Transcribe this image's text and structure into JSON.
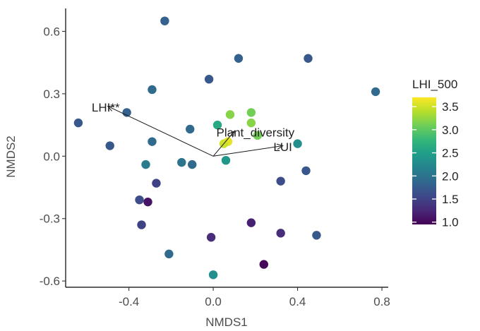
{
  "chart_data": {
    "type": "scatter",
    "title": "",
    "xlabel": "NMDS1",
    "ylabel": "NMDS2",
    "xlim": [
      -0.7,
      0.83
    ],
    "ylim": [
      -0.63,
      0.71
    ],
    "x_ticks": [
      -0.4,
      0.0,
      0.4,
      0.8
    ],
    "x_tick_labels": [
      "-0.4",
      "0.0",
      "0.4",
      "0.8"
    ],
    "y_ticks": [
      -0.6,
      -0.3,
      0.0,
      0.3,
      0.6
    ],
    "y_tick_labels": [
      "-0.6",
      "-0.3",
      "0.0",
      "0.3",
      "0.6"
    ],
    "grid": false,
    "legend": {
      "title": "LHI_500",
      "position": "right",
      "range": [
        0.95,
        3.7
      ],
      "ticks": [
        1.0,
        1.5,
        2.0,
        2.5,
        3.0,
        3.5
      ],
      "tick_labels": [
        "1.0",
        "1.5",
        "2.0",
        "2.5",
        "3.0",
        "3.5"
      ]
    },
    "colormap": [
      "#440154",
      "#482878",
      "#3e4989",
      "#31688e",
      "#26828e",
      "#1f9e89",
      "#35b779",
      "#6ece58",
      "#b5de2b",
      "#fde725"
    ],
    "points": [
      {
        "x": -0.23,
        "y": 0.65,
        "lhi": 1.8
      },
      {
        "x": 0.12,
        "y": 0.47,
        "lhi": 1.8
      },
      {
        "x": 0.45,
        "y": 0.47,
        "lhi": 1.7
      },
      {
        "x": -0.02,
        "y": 0.37,
        "lhi": 1.7
      },
      {
        "x": -0.29,
        "y": 0.32,
        "lhi": 1.9
      },
      {
        "x": 0.77,
        "y": 0.31,
        "lhi": 1.9
      },
      {
        "x": -0.64,
        "y": 0.16,
        "lhi": 1.7
      },
      {
        "x": -0.41,
        "y": 0.21,
        "lhi": 1.8
      },
      {
        "x": -0.49,
        "y": 0.05,
        "lhi": 1.7
      },
      {
        "x": -0.29,
        "y": 0.07,
        "lhi": 1.9
      },
      {
        "x": -0.32,
        "y": -0.04,
        "lhi": 2.1
      },
      {
        "x": -0.15,
        "y": -0.03,
        "lhi": 2.0
      },
      {
        "x": -0.1,
        "y": -0.04,
        "lhi": 1.9
      },
      {
        "x": -0.11,
        "y": 0.13,
        "lhi": 1.9
      },
      {
        "x": -0.27,
        "y": -0.13,
        "lhi": 1.5
      },
      {
        "x": -0.35,
        "y": -0.21,
        "lhi": 1.6
      },
      {
        "x": -0.31,
        "y": -0.22,
        "lhi": 1.1
      },
      {
        "x": -0.34,
        "y": -0.33,
        "lhi": 1.5
      },
      {
        "x": 0.02,
        "y": 0.15,
        "lhi": 2.6
      },
      {
        "x": 0.08,
        "y": 0.2,
        "lhi": 3.2
      },
      {
        "x": 0.18,
        "y": 0.21,
        "lhi": 3.1
      },
      {
        "x": 0.18,
        "y": 0.16,
        "lhi": 3.2
      },
      {
        "x": 0.21,
        "y": 0.1,
        "lhi": 3.1
      },
      {
        "x": 0.07,
        "y": 0.07,
        "lhi": 3.6
      },
      {
        "x": 0.05,
        "y": 0.06,
        "lhi": 3.5
      },
      {
        "x": 0.06,
        "y": -0.02,
        "lhi": 2.4
      },
      {
        "x": 0.4,
        "y": 0.06,
        "lhi": 2.3
      },
      {
        "x": 0.44,
        "y": -0.07,
        "lhi": 1.7
      },
      {
        "x": 0.32,
        "y": -0.12,
        "lhi": 1.6
      },
      {
        "x": 0.18,
        "y": -0.32,
        "lhi": 1.2
      },
      {
        "x": 0.32,
        "y": -0.37,
        "lhi": 1.3
      },
      {
        "x": 0.49,
        "y": -0.38,
        "lhi": 1.7
      },
      {
        "x": -0.01,
        "y": -0.39,
        "lhi": 1.3
      },
      {
        "x": -0.21,
        "y": -0.47,
        "lhi": 1.9
      },
      {
        "x": 0.24,
        "y": -0.52,
        "lhi": 1.0
      },
      {
        "x": 0.0,
        "y": -0.57,
        "lhi": 2.3
      }
    ],
    "vectors": [
      {
        "label": "LHI**",
        "x": -0.5,
        "y": 0.24,
        "label_x": -0.51,
        "label_y": 0.235
      },
      {
        "label": "Plant_diversity",
        "x": 0.1,
        "y": 0.12,
        "label_x": 0.2,
        "label_y": 0.115
      },
      {
        "label": "LUI",
        "x": 0.33,
        "y": 0.05,
        "label_x": 0.33,
        "label_y": 0.045
      }
    ]
  }
}
